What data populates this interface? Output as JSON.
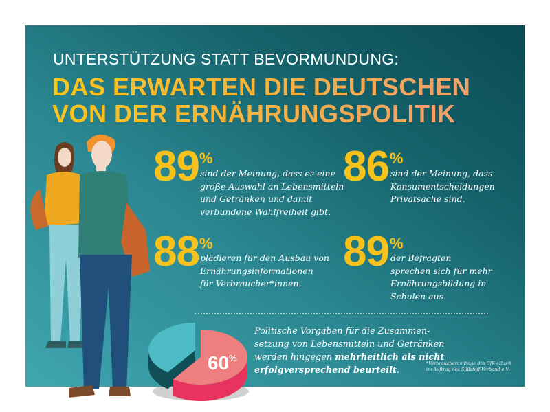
{
  "header": {
    "subtitle": "UNTERSTÜTZUNG STATT BEVORMUNDUNG:",
    "title_line1": "DAS ERWARTEN DIE DEUTSCHEN",
    "title_line2": "VON DER ERNÄHRUNGSPOLITIK"
  },
  "stats": [
    {
      "value": "89",
      "unit": "%",
      "lines": [
        "sind der Meinung, dass es eine",
        "große Auswahl an Lebensmitteln",
        "und Getränken und damit",
        "verbundene Wahlfreiheit gibt."
      ]
    },
    {
      "value": "86",
      "unit": "%",
      "lines": [
        "sind der Meinung, dass",
        "Konsumentscheidungen",
        "Privatsache sind."
      ]
    },
    {
      "value": "88",
      "unit": "%",
      "lines": [
        "plädieren für den Ausbau von",
        "Ernährungsinformationen",
        "für Verbraucher*innen."
      ]
    },
    {
      "value": "89",
      "unit": "%",
      "lines": [
        "der Befragten",
        "sprechen sich für mehr",
        "Ernährungsbildung in",
        "Schulen aus."
      ]
    }
  ],
  "pie": {
    "value": "60",
    "unit": "%",
    "fraction": 0.6,
    "colors": {
      "highlight_top": "#ef7f7f",
      "highlight_side": "#e8335f",
      "rest_top": "#4dbcc4",
      "rest_side": "#0f4f55"
    }
  },
  "bottom": {
    "line1": "Politische Vorgaben für die Zusammen-",
    "line2": "setzung von Lebensmitteln und Getränken",
    "line3_normal": "werden hingegen ",
    "line3_bold": "mehrheitlich als nicht",
    "line4_bold": "erfolgversprechend beurteilt",
    "line4_end": "."
  },
  "footnote": {
    "line1": "*Verbraucherumfrage des GfK eBus®",
    "line2": "im Auftrag des Süßstoff-Verband e.V."
  },
  "colors": {
    "accent_yellow": "#f8c21c",
    "accent_orange": "#f29f6e",
    "bg_dark": "#0b4a52",
    "bg_light": "#3fa6b0"
  }
}
